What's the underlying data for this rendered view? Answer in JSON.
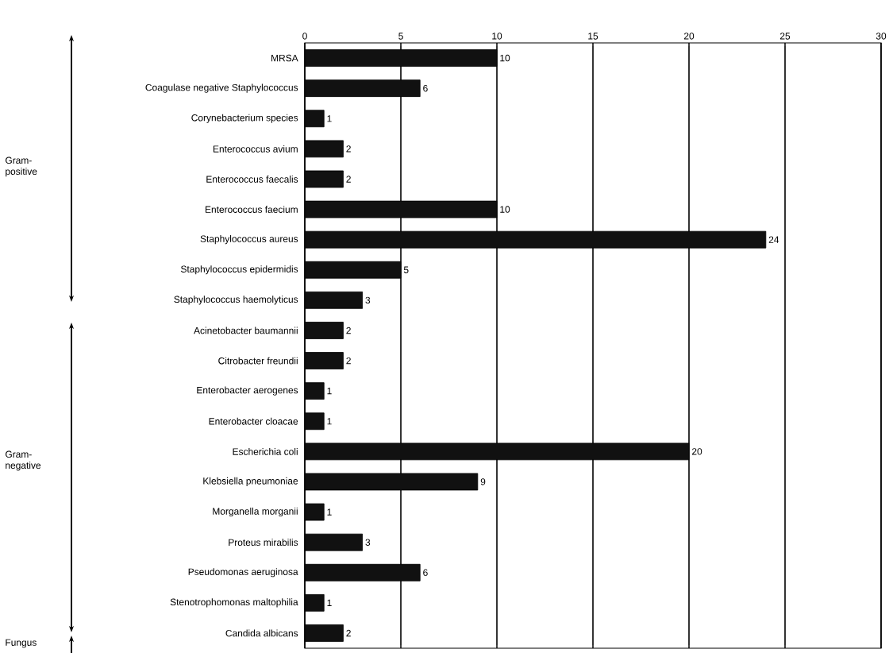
{
  "chart_data": {
    "type": "bar",
    "orientation": "horizontal",
    "categories": [
      "MRSA",
      "Coagulase negative Staphylococcus",
      "Corynebacterium species",
      "Enterococcus avium",
      "Enterococcus faecalis",
      "Enterococcus faecium",
      "Staphylococcus aureus",
      "Staphylococcus epidermidis",
      "Staphylococcus haemolyticus",
      "Acinetobacter baumannii",
      "Citrobacter freundii",
      "Enterobacter aerogenes",
      "Enterobacter cloacae",
      "Escherichia coli",
      "Klebsiella pneumoniae",
      "Morganella morganii",
      "Proteus mirabilis",
      "Pseudomonas aeruginosa",
      "Stenotrophomonas maltophilia",
      "Candida albicans"
    ],
    "values": [
      10,
      6,
      1,
      2,
      2,
      10,
      24,
      5,
      3,
      2,
      2,
      1,
      1,
      20,
      9,
      1,
      3,
      6,
      1,
      2
    ],
    "color": "#111111",
    "xlim": [
      0,
      30
    ],
    "xticks": [
      0,
      5,
      10,
      15,
      20,
      25,
      30
    ],
    "grid": "x",
    "data_labels": true,
    "annotations": [
      "Gram-positive",
      "Gram-negative",
      "Fungus"
    ]
  }
}
